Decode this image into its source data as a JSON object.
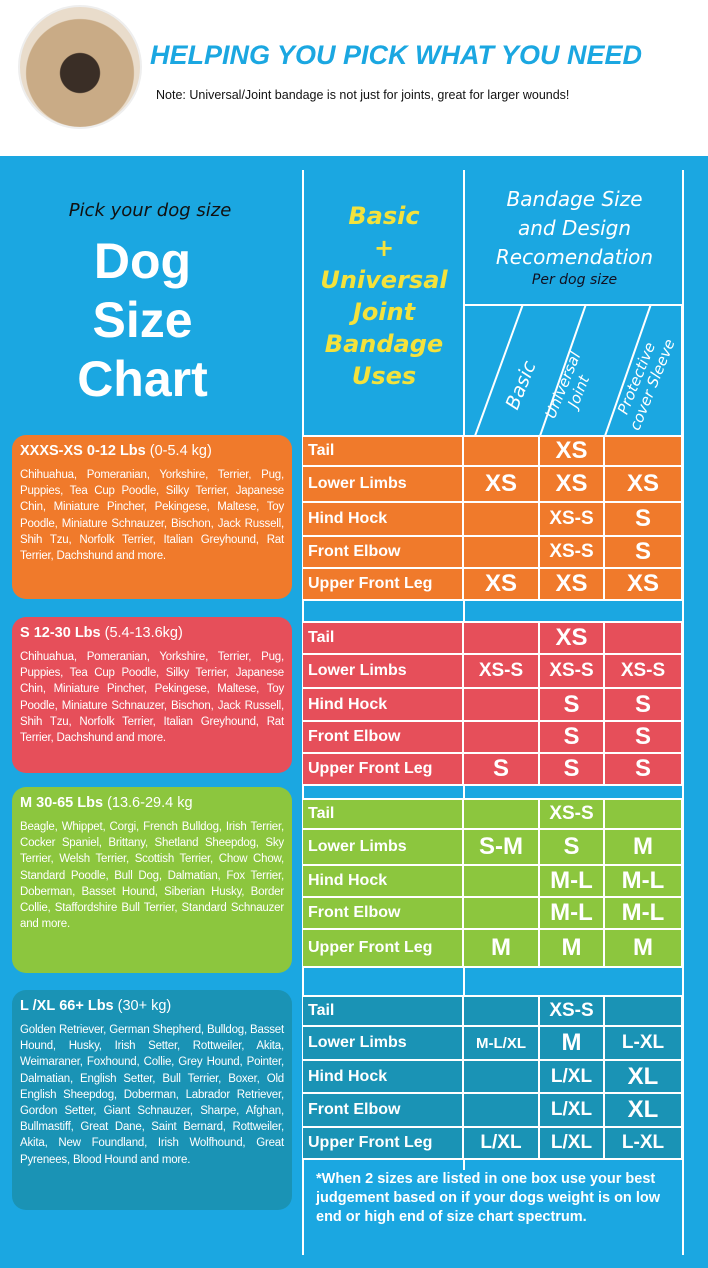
{
  "header": {
    "title": "HELPING YOU PICK WHAT YOU NEED",
    "note": "Note: Universal/Joint bandage is not just for joints, great for larger wounds!"
  },
  "left": {
    "pick": "Pick your dog size",
    "title_lines": [
      "Dog",
      "Size",
      "Chart"
    ]
  },
  "cards": [
    {
      "size": "XXXS-XS",
      "lbs": "0-12 Lbs",
      "kg": "(0-5.4 kg)",
      "color": "#f07a2b",
      "breeds": "Chihuahua, Pomeranian, Yorkshire, Terrier, Pug, Puppies, Tea Cup Poodle, Silky Terrier, Japanese Chin, Miniature Pincher, Pekingese, Maltese, Toy Poodle, Miniature Schnauzer, Bischon, Jack Russell, Shih Tzu, Norfolk Terrier, Italian Greyhound, Rat Terrier, Dachshund and more."
    },
    {
      "size": "S",
      "lbs": "12-30 Lbs",
      "kg": "(5.4-13.6kg)",
      "color": "#e64f5a",
      "breeds": "Chihuahua, Pomeranian, Yorkshire, Terrier, Pug, Puppies, Tea Cup Poodle, Silky Terrier, Japanese Chin, Miniature Pincher, Pekingese, Maltese, Toy Poodle, Miniature Schnauzer, Bischon, Jack Russell, Shih Tzu, Norfolk Terrier, Italian Greyhound, Rat Terrier, Dachshund and more."
    },
    {
      "size": "M",
      "lbs": "30-65 Lbs",
      "kg": "(13.6-29.4 kg",
      "color": "#8cc63e",
      "breeds": "Beagle, Whippet, Corgi, French Bulldog, Irish Terrier, Cocker Spaniel, Brittany, Shetland Sheepdog, Sky Terrier, Welsh Terrier, Scottish Terrier, Chow Chow, Standard Poodle, Bull Dog, Dalmatian, Fox Terrier, Doberman, Basset Hound, Siberian Husky, Border Collie, Staffordshire Bull Terrier, Standard Schnauzer and more."
    },
    {
      "size": "L /XL",
      "lbs": "66+ Lbs",
      "kg": "(30+ kg)",
      "color": "#1a93b5",
      "breeds": "Golden Retriever, German Shepherd, Bulldog, Basset Hound, Husky, Irish Setter, Rottweiler, Akita, Weimaraner, Foxhound, Collie, Grey Hound, Pointer, Dalmatian, English Setter, Bull Terrier, Boxer, Old English Sheepdog, Doberman, Labrador Retriever, Gordon Setter, Giant Schnauzer, Sharpe, Afghan, Bullmastiff, Great Dane, Saint Bernard, Rottweiler, Akita, New Foundland, Irish Wolfhound, Great Pyrenees, Blood Hound and more."
    }
  ],
  "table": {
    "uses_heading": [
      "Basic",
      "+",
      "Universal",
      "Joint",
      "Bandage",
      "Uses"
    ],
    "rec_heading": [
      "Bandage Size",
      "and Design",
      "Recomendation"
    ],
    "per_dog": "Per dog size",
    "columns": [
      "Basic",
      "Universal Joint",
      "Protective cover Sleeve"
    ],
    "groups": [
      {
        "rows": [
          [
            "Tail",
            "",
            "XS",
            ""
          ],
          [
            "Lower Limbs",
            "XS",
            "XS",
            "XS"
          ],
          [
            "Hind Hock",
            "",
            "XS-S",
            "S"
          ],
          [
            "Front Elbow",
            "",
            "XS-S",
            "S"
          ],
          [
            "Upper Front Leg",
            "XS",
            "XS",
            "XS"
          ]
        ]
      },
      {
        "rows": [
          [
            "Tail",
            "",
            "XS",
            ""
          ],
          [
            "Lower Limbs",
            "XS-S",
            "XS-S",
            "XS-S"
          ],
          [
            "Hind Hock",
            "",
            "S",
            "S"
          ],
          [
            "Front Elbow",
            "",
            "S",
            "S"
          ],
          [
            "Upper Front Leg",
            "S",
            "S",
            "S"
          ]
        ]
      },
      {
        "rows": [
          [
            "Tail",
            "",
            "XS-S",
            ""
          ],
          [
            "Lower Limbs",
            "S-M",
            "S",
            "M"
          ],
          [
            "Hind Hock",
            "",
            "M-L",
            "M-L"
          ],
          [
            "Front Elbow",
            "",
            "M-L",
            "M-L"
          ],
          [
            "Upper Front Leg",
            "M",
            "M",
            "M"
          ]
        ]
      },
      {
        "rows": [
          [
            "Tail",
            "",
            "XS-S",
            ""
          ],
          [
            "Lower Limbs",
            "M-L/XL",
            "M",
            "L-XL"
          ],
          [
            "Hind Hock",
            "",
            "L/XL",
            "XL"
          ],
          [
            "Front Elbow",
            "",
            "L/XL",
            "XL"
          ],
          [
            "Upper Front Leg",
            "L/XL",
            "L/XL",
            "L-XL"
          ]
        ]
      }
    ],
    "footnote": "*When 2 sizes are listed in one box use your best judgement based on if your dogs weight is on low end or high end of size chart spectrum."
  }
}
